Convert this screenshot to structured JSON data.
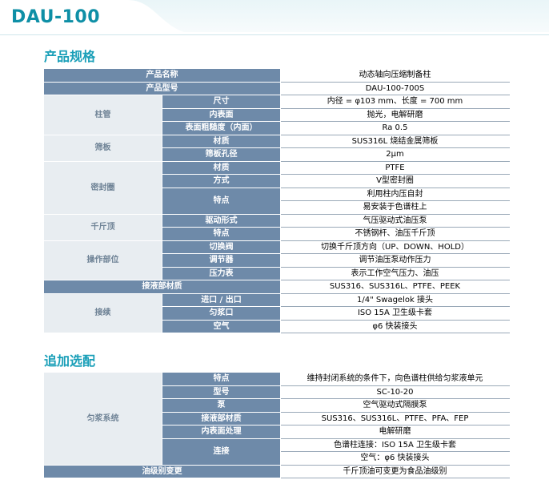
{
  "page": {
    "title": "DAU-100"
  },
  "spec": {
    "heading": "产品规格",
    "rows": [
      {
        "g": null,
        "k": "产品名称",
        "v": "动态轴向压缩制备柱"
      },
      {
        "g": null,
        "k": "产品型号",
        "v": "DAU-100-700S"
      },
      {
        "g": "柱管",
        "k": "尺寸",
        "v": "内径 = φ103 mm、长度 = 700 mm"
      },
      {
        "g": "柱管",
        "k": "内表面",
        "v": "抛光，电解研磨"
      },
      {
        "g": "柱管",
        "k": "表面粗糙度（内面）",
        "v": "Ra 0.5"
      },
      {
        "g": "筛板",
        "k": "材质",
        "v": "SUS316L 烧结金属筛板"
      },
      {
        "g": "筛板",
        "k": "筛板孔径",
        "v": "2μm"
      },
      {
        "g": "密封圈",
        "k": "材质",
        "v": "PTFE"
      },
      {
        "g": "密封圈",
        "k": "方式",
        "v": "V型密封圈"
      },
      {
        "g": "密封圈",
        "k": "特点",
        "v": "利用柱内压自封"
      },
      {
        "g": "密封圈",
        "k": "特点",
        "v": "易安装于色谱柱上"
      },
      {
        "g": "千斤顶",
        "k": "驱动形式",
        "v": "气压驱动式油压泵"
      },
      {
        "g": "千斤顶",
        "k": "特点",
        "v": "不锈钢杆、油压千斤顶"
      },
      {
        "g": "操作部位",
        "k": "切换阀",
        "v": "切换千斤顶方向（UP、DOWN、HOLD）"
      },
      {
        "g": "操作部位",
        "k": "调节器",
        "v": "调节油压泵动作压力"
      },
      {
        "g": "操作部位",
        "k": "压力表",
        "v": "表示工作空气压力、油压"
      },
      {
        "g": null,
        "k": "接液部材质",
        "v": "SUS316、SUS316L、PTFE、PEEK"
      },
      {
        "g": "接续",
        "k": "进口 / 出口",
        "v": "1/4\" Swagelok 接头"
      },
      {
        "g": "接续",
        "k": "匀浆口",
        "v": "ISO 15A 卫生级卡套"
      },
      {
        "g": "接续",
        "k": "空气",
        "v": "φ6 快装接头"
      }
    ]
  },
  "options": {
    "heading": "追加选配",
    "rows": [
      {
        "g": "匀浆系统",
        "k": "特点",
        "v": "维持封闭系统的条件下，向色谱柱供给匀浆液单元"
      },
      {
        "g": "匀浆系统",
        "k": "型号",
        "v": "SC-10-20"
      },
      {
        "g": "匀浆系统",
        "k": "泵",
        "v": "空气驱动式隔膜泵"
      },
      {
        "g": "匀浆系统",
        "k": "接液部材质",
        "v": "SUS316、SUS316L、PTFE、PFA、FEP"
      },
      {
        "g": "匀浆系统",
        "k": "内表面处理",
        "v": "电解研磨"
      },
      {
        "g": "匀浆系统",
        "k": "连接",
        "v": "色谱柱连接：ISO 15A 卫生级卡套"
      },
      {
        "g": "匀浆系统",
        "k": "连接",
        "v": "空气：φ6 快装接头"
      },
      {
        "g": null,
        "k": "油级别变更",
        "v": "千斤顶油可变更为食品油级别"
      }
    ]
  }
}
